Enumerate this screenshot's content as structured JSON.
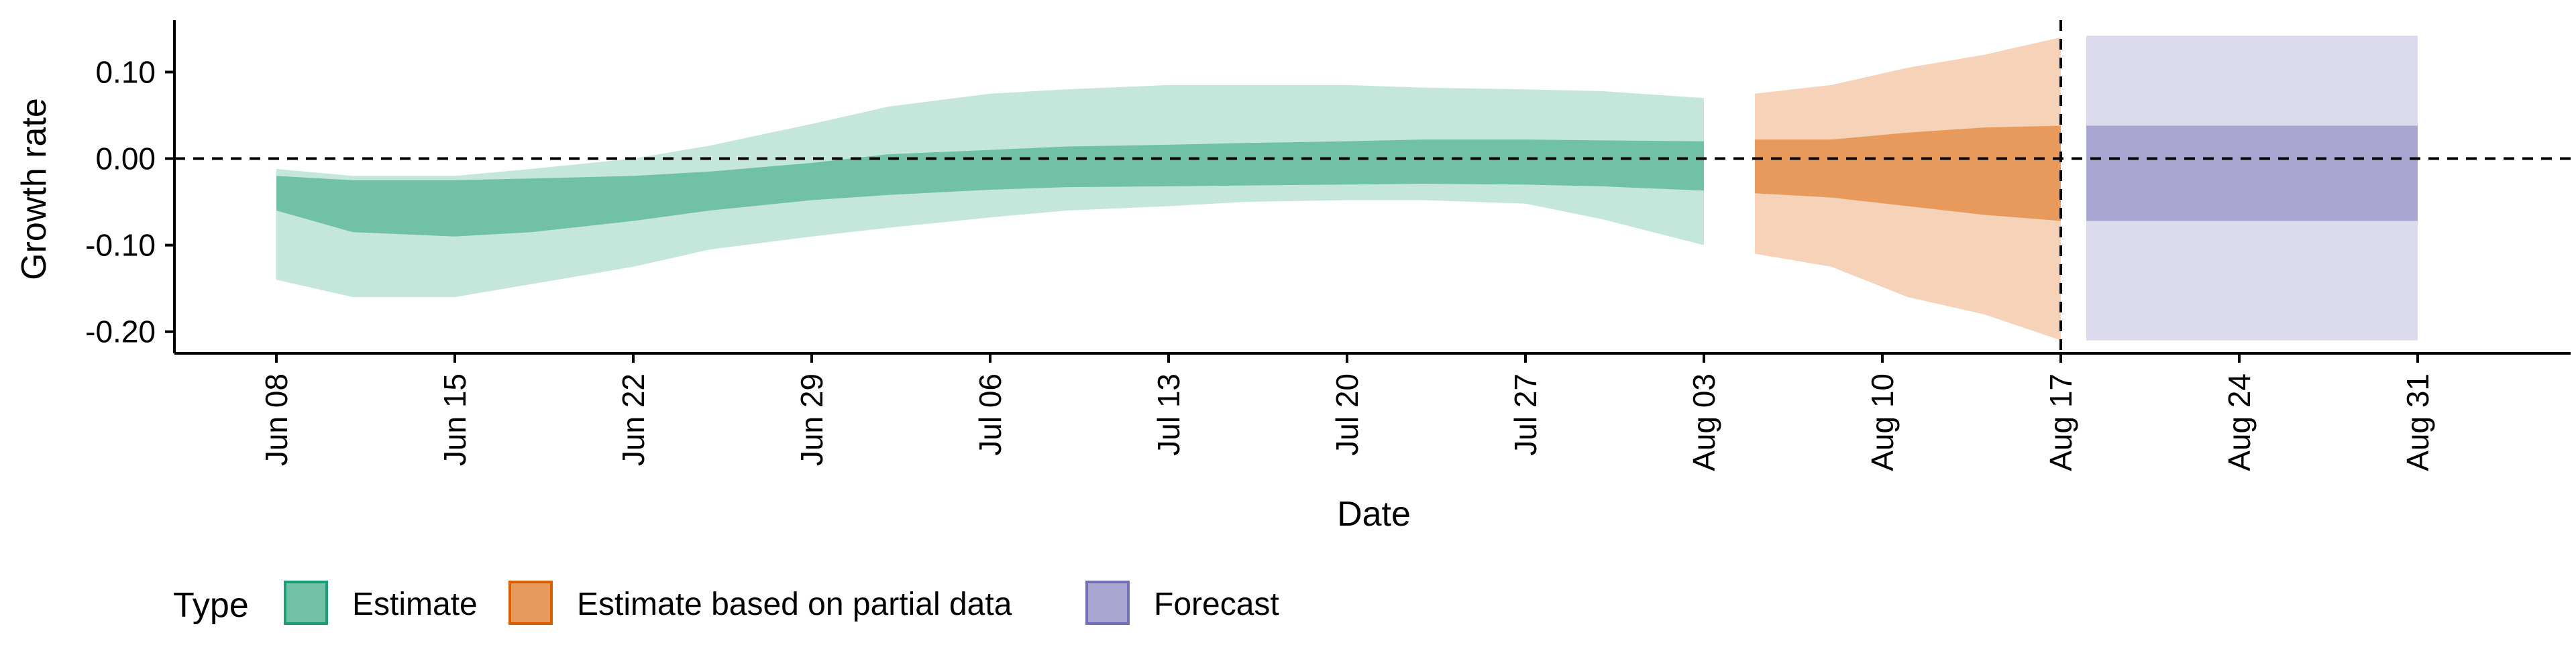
{
  "chart_data": {
    "type": "area",
    "xlabel": "Date",
    "ylabel": "Growth rate",
    "x_ticks": [
      "Jun 08",
      "Jun 15",
      "Jun 22",
      "Jun 29",
      "Jul 06",
      "Jul 13",
      "Jul 20",
      "Jul 27",
      "Aug 03",
      "Aug 10",
      "Aug 17",
      "Aug 24",
      "Aug 31"
    ],
    "y_ticks": [
      {
        "value": 0.1,
        "label": "0.10"
      },
      {
        "value": 0.0,
        "label": "0.00"
      },
      {
        "value": -0.1,
        "label": "-0.10"
      },
      {
        "value": -0.2,
        "label": "-0.20"
      }
    ],
    "xlim": [
      "2020-06-04",
      "2020-09-06"
    ],
    "ylim": [
      -0.225,
      0.16
    ],
    "reference_lines": {
      "horizontal_y": 0.0,
      "vertical_date": "2020-08-17"
    },
    "legend": {
      "title": "Type",
      "position": "bottom-left",
      "entries": [
        {
          "key": "estimate",
          "label": "Estimate",
          "fill": "#70c1a6",
          "border": "#1b9e77"
        },
        {
          "key": "partial",
          "label": "Estimate based on partial data",
          "fill": "#e89a5c",
          "border": "#d95f02"
        },
        {
          "key": "forecast",
          "label": "Forecast",
          "fill": "#a8a6d1",
          "border": "#7570b3"
        }
      ]
    },
    "series": [
      {
        "key": "estimate",
        "name": "Estimate",
        "color_inner": "#70c1a6",
        "color_outer": "#c4e6db",
        "x": [
          "2020-06-08",
          "2020-06-11",
          "2020-06-15",
          "2020-06-18",
          "2020-06-22",
          "2020-06-25",
          "2020-06-29",
          "2020-07-02",
          "2020-07-06",
          "2020-07-09",
          "2020-07-13",
          "2020-07-16",
          "2020-07-20",
          "2020-07-23",
          "2020-07-27",
          "2020-07-30",
          "2020-08-03"
        ],
        "lower_90": [
          -0.14,
          -0.16,
          -0.16,
          -0.145,
          -0.125,
          -0.105,
          -0.09,
          -0.08,
          -0.068,
          -0.06,
          -0.055,
          -0.05,
          -0.048,
          -0.048,
          -0.052,
          -0.07,
          -0.1
        ],
        "lower_50": [
          -0.06,
          -0.085,
          -0.09,
          -0.085,
          -0.072,
          -0.06,
          -0.048,
          -0.042,
          -0.036,
          -0.033,
          -0.032,
          -0.031,
          -0.03,
          -0.029,
          -0.03,
          -0.032,
          -0.037
        ],
        "upper_50": [
          -0.02,
          -0.025,
          -0.025,
          -0.023,
          -0.02,
          -0.015,
          -0.005,
          0.005,
          0.01,
          0.014,
          0.016,
          0.018,
          0.02,
          0.022,
          0.022,
          0.021,
          0.02
        ],
        "upper_90": [
          -0.012,
          -0.02,
          -0.02,
          -0.012,
          0.0,
          0.015,
          0.04,
          0.06,
          0.075,
          0.08,
          0.085,
          0.085,
          0.085,
          0.082,
          0.08,
          0.078,
          0.07
        ]
      },
      {
        "key": "partial",
        "name": "Estimate based on partial data",
        "color_inner": "#e89a5c",
        "color_outer": "#f6d3b8",
        "x": [
          "2020-08-05",
          "2020-08-08",
          "2020-08-11",
          "2020-08-14",
          "2020-08-17"
        ],
        "lower_90": [
          -0.11,
          -0.125,
          -0.16,
          -0.18,
          -0.21
        ],
        "lower_50": [
          -0.04,
          -0.045,
          -0.055,
          -0.065,
          -0.072
        ],
        "upper_50": [
          0.022,
          0.022,
          0.03,
          0.036,
          0.038
        ],
        "upper_90": [
          0.075,
          0.085,
          0.105,
          0.12,
          0.14
        ]
      },
      {
        "key": "forecast",
        "name": "Forecast",
        "color_inner": "#a8a6d1",
        "color_outer": "#dcdbee",
        "x": [
          "2020-08-18",
          "2020-08-31"
        ],
        "lower_90": [
          -0.21,
          -0.21
        ],
        "lower_50": [
          -0.072,
          -0.072
        ],
        "upper_50": [
          0.038,
          0.038
        ],
        "upper_90": [
          0.142,
          0.142
        ]
      }
    ]
  }
}
